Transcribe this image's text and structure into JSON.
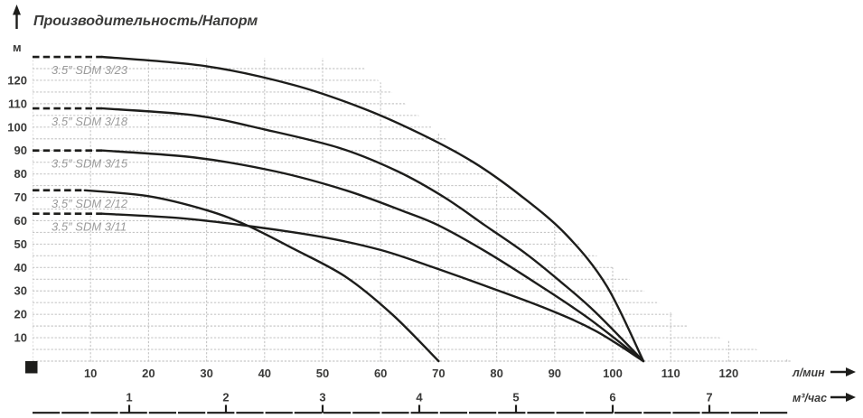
{
  "title": "Производительность/Напорм",
  "colors": {
    "curve": "#1d1d1b",
    "grid": "#c7c7c7",
    "curve_label": "#9b9b9b",
    "text": "#3a3a39"
  },
  "chart_data": {
    "type": "line",
    "title": "Производительность/Напорм",
    "y_axis": {
      "unit": "м",
      "ticks": [
        10,
        20,
        30,
        40,
        50,
        60,
        70,
        80,
        90,
        100,
        110,
        120
      ],
      "range": [
        0,
        135
      ]
    },
    "x_axis_flow": {
      "unit": "л/мин",
      "ticks": [
        10,
        20,
        30,
        40,
        50,
        60,
        70,
        80,
        90,
        100,
        110,
        120
      ],
      "range": [
        0,
        135
      ]
    },
    "x_axis_volume": {
      "unit": "м³/час",
      "ticks": [
        1,
        2,
        3,
        4,
        5,
        6,
        7
      ],
      "l_min_per_unit": 16.667
    },
    "grid": {
      "h_step_m": 5,
      "v_step_l_min": 10,
      "style": "dotted"
    },
    "series": [
      {
        "name": "3.5″ SDM 3/23",
        "max_head_m": 130,
        "dash_to_flow": 12,
        "points": [
          [
            12,
            130
          ],
          [
            30,
            126
          ],
          [
            45,
            118
          ],
          [
            57,
            108
          ],
          [
            67,
            97
          ],
          [
            76,
            85
          ],
          [
            84,
            71
          ],
          [
            92,
            54
          ],
          [
            99,
            32
          ],
          [
            105.3,
            0
          ]
        ]
      },
      {
        "name": "3.5″ SDM 3/18",
        "max_head_m": 108,
        "dash_to_flow": 12,
        "points": [
          [
            12,
            108
          ],
          [
            28,
            105
          ],
          [
            40,
            99
          ],
          [
            53,
            91
          ],
          [
            63,
            81
          ],
          [
            71,
            70
          ],
          [
            78,
            58
          ],
          [
            85,
            46
          ],
          [
            91,
            34
          ],
          [
            97,
            21
          ],
          [
            105.3,
            0
          ]
        ]
      },
      {
        "name": "3.5″ SDM 3/15",
        "max_head_m": 90,
        "dash_to_flow": 12,
        "points": [
          [
            12,
            90
          ],
          [
            28,
            87
          ],
          [
            42,
            81
          ],
          [
            54,
            73
          ],
          [
            64,
            64
          ],
          [
            70,
            58
          ],
          [
            78,
            47
          ],
          [
            87,
            33
          ],
          [
            96,
            18
          ],
          [
            105.3,
            0
          ]
        ]
      },
      {
        "name": "3.5″ SDM 2/12",
        "max_head_m": 73,
        "dash_to_flow": 9,
        "points": [
          [
            9,
            73
          ],
          [
            20,
            70.5
          ],
          [
            30,
            64.5
          ],
          [
            37,
            58
          ],
          [
            45,
            48
          ],
          [
            54,
            36
          ],
          [
            62,
            20
          ],
          [
            70,
            0
          ]
        ]
      },
      {
        "name": "3.5″ SDM 3/11",
        "max_head_m": 63,
        "dash_to_flow": 12,
        "points": [
          [
            12,
            63
          ],
          [
            26,
            61
          ],
          [
            38,
            57.5
          ],
          [
            50,
            53
          ],
          [
            60,
            47.5
          ],
          [
            68,
            41
          ],
          [
            76,
            34
          ],
          [
            88,
            23
          ],
          [
            97,
            13
          ],
          [
            105.3,
            0
          ]
        ]
      }
    ]
  }
}
